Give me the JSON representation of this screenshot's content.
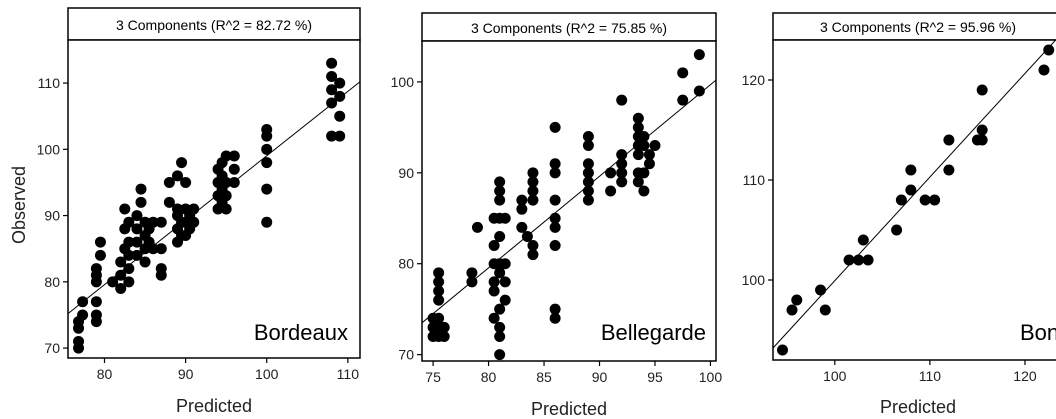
{
  "figure": {
    "y_axis_label": "Observed"
  },
  "chart_data": [
    {
      "type": "scatter",
      "title": "3 Components (R^2 = 82.72 %)",
      "xlabel": "Predicted",
      "ylabel": "Observed",
      "annotation": "Bordeaux",
      "xlim": [
        75.5,
        111.5
      ],
      "ylim": [
        68.5,
        116.5
      ],
      "xticks": [
        80,
        90,
        100,
        110
      ],
      "yticks": [
        70,
        80,
        90,
        100,
        110
      ],
      "fit_line": {
        "x": [
          75.5,
          111.5
        ],
        "y": [
          75.2,
          110.2
        ]
      },
      "points": [
        {
          "x": 76.8,
          "y": 70
        },
        {
          "x": 76.8,
          "y": 71
        },
        {
          "x": 76.8,
          "y": 73
        },
        {
          "x": 76.8,
          "y": 74
        },
        {
          "x": 77.3,
          "y": 75
        },
        {
          "x": 77.3,
          "y": 77
        },
        {
          "x": 79,
          "y": 74
        },
        {
          "x": 79,
          "y": 75
        },
        {
          "x": 79,
          "y": 77
        },
        {
          "x": 79,
          "y": 80
        },
        {
          "x": 79,
          "y": 81
        },
        {
          "x": 79,
          "y": 82
        },
        {
          "x": 79.5,
          "y": 84
        },
        {
          "x": 79.5,
          "y": 86
        },
        {
          "x": 81,
          "y": 80
        },
        {
          "x": 82,
          "y": 79
        },
        {
          "x": 82,
          "y": 81
        },
        {
          "x": 82,
          "y": 83
        },
        {
          "x": 82.5,
          "y": 85
        },
        {
          "x": 82.5,
          "y": 88
        },
        {
          "x": 82.5,
          "y": 91
        },
        {
          "x": 83,
          "y": 80
        },
        {
          "x": 83,
          "y": 82
        },
        {
          "x": 83,
          "y": 84
        },
        {
          "x": 83,
          "y": 86
        },
        {
          "x": 83,
          "y": 89
        },
        {
          "x": 84,
          "y": 84
        },
        {
          "x": 84,
          "y": 86
        },
        {
          "x": 84,
          "y": 88
        },
        {
          "x": 84,
          "y": 90
        },
        {
          "x": 84.5,
          "y": 92
        },
        {
          "x": 84.5,
          "y": 94
        },
        {
          "x": 85,
          "y": 83
        },
        {
          "x": 85,
          "y": 85
        },
        {
          "x": 85,
          "y": 87
        },
        {
          "x": 85,
          "y": 89
        },
        {
          "x": 85.5,
          "y": 86
        },
        {
          "x": 85.5,
          "y": 88
        },
        {
          "x": 86,
          "y": 85
        },
        {
          "x": 86,
          "y": 89
        },
        {
          "x": 87,
          "y": 81
        },
        {
          "x": 87,
          "y": 82
        },
        {
          "x": 87,
          "y": 85
        },
        {
          "x": 87,
          "y": 89
        },
        {
          "x": 88,
          "y": 92
        },
        {
          "x": 88,
          "y": 95
        },
        {
          "x": 89,
          "y": 86
        },
        {
          "x": 89,
          "y": 88
        },
        {
          "x": 89,
          "y": 90
        },
        {
          "x": 89,
          "y": 91
        },
        {
          "x": 89,
          "y": 96
        },
        {
          "x": 89.5,
          "y": 87
        },
        {
          "x": 89.5,
          "y": 89
        },
        {
          "x": 89.5,
          "y": 98
        },
        {
          "x": 90,
          "y": 87
        },
        {
          "x": 90,
          "y": 89
        },
        {
          "x": 90,
          "y": 91
        },
        {
          "x": 90,
          "y": 95
        },
        {
          "x": 90.5,
          "y": 88
        },
        {
          "x": 90.5,
          "y": 90
        },
        {
          "x": 91,
          "y": 89
        },
        {
          "x": 91,
          "y": 91
        },
        {
          "x": 94,
          "y": 91
        },
        {
          "x": 94,
          "y": 93
        },
        {
          "x": 94,
          "y": 95
        },
        {
          "x": 94,
          "y": 97
        },
        {
          "x": 94.5,
          "y": 92
        },
        {
          "x": 94.5,
          "y": 94
        },
        {
          "x": 94.5,
          "y": 96
        },
        {
          "x": 94.5,
          "y": 98
        },
        {
          "x": 95,
          "y": 91
        },
        {
          "x": 95,
          "y": 93
        },
        {
          "x": 95,
          "y": 95
        },
        {
          "x": 95,
          "y": 99
        },
        {
          "x": 96,
          "y": 95
        },
        {
          "x": 96,
          "y": 97
        },
        {
          "x": 96,
          "y": 99
        },
        {
          "x": 100,
          "y": 89
        },
        {
          "x": 100,
          "y": 94
        },
        {
          "x": 100,
          "y": 98
        },
        {
          "x": 100,
          "y": 100
        },
        {
          "x": 100,
          "y": 102
        },
        {
          "x": 100,
          "y": 103
        },
        {
          "x": 108,
          "y": 102
        },
        {
          "x": 108,
          "y": 107
        },
        {
          "x": 108,
          "y": 109
        },
        {
          "x": 108,
          "y": 111
        },
        {
          "x": 108,
          "y": 113
        },
        {
          "x": 109,
          "y": 105
        },
        {
          "x": 109,
          "y": 108
        },
        {
          "x": 109,
          "y": 110
        },
        {
          "x": 109,
          "y": 102
        }
      ]
    },
    {
      "type": "scatter",
      "title": "3 Components (R^2 = 75.85 %)",
      "xlabel": "Predicted",
      "ylabel": "",
      "annotation": "Bellegarde",
      "xlim": [
        74,
        100.5
      ],
      "ylim": [
        69.3,
        104.5
      ],
      "xticks": [
        75,
        80,
        85,
        90,
        95,
        100
      ],
      "yticks": [
        70,
        80,
        90,
        100
      ],
      "fit_line": {
        "x": [
          74,
          100.5
        ],
        "y": [
          73.5,
          100.2
        ]
      },
      "points": [
        {
          "x": 75,
          "y": 72
        },
        {
          "x": 75,
          "y": 73
        },
        {
          "x": 75,
          "y": 74
        },
        {
          "x": 75.5,
          "y": 72
        },
        {
          "x": 75.5,
          "y": 73
        },
        {
          "x": 75.5,
          "y": 74
        },
        {
          "x": 75.5,
          "y": 76
        },
        {
          "x": 75.5,
          "y": 77
        },
        {
          "x": 75.5,
          "y": 78
        },
        {
          "x": 75.5,
          "y": 79
        },
        {
          "x": 76,
          "y": 72
        },
        {
          "x": 76,
          "y": 73
        },
        {
          "x": 78.5,
          "y": 78
        },
        {
          "x": 78.5,
          "y": 79
        },
        {
          "x": 79,
          "y": 84
        },
        {
          "x": 80.5,
          "y": 80
        },
        {
          "x": 80.5,
          "y": 82
        },
        {
          "x": 80.5,
          "y": 85
        },
        {
          "x": 80.5,
          "y": 78
        },
        {
          "x": 80.5,
          "y": 77
        },
        {
          "x": 80.5,
          "y": 74
        },
        {
          "x": 81,
          "y": 70
        },
        {
          "x": 81,
          "y": 72
        },
        {
          "x": 81,
          "y": 73
        },
        {
          "x": 81,
          "y": 75
        },
        {
          "x": 81,
          "y": 79
        },
        {
          "x": 81,
          "y": 80
        },
        {
          "x": 81,
          "y": 83
        },
        {
          "x": 81,
          "y": 85
        },
        {
          "x": 81,
          "y": 87
        },
        {
          "x": 81,
          "y": 88
        },
        {
          "x": 81,
          "y": 89
        },
        {
          "x": 81.5,
          "y": 76
        },
        {
          "x": 81.5,
          "y": 78
        },
        {
          "x": 81.5,
          "y": 80
        },
        {
          "x": 81.5,
          "y": 85
        },
        {
          "x": 83,
          "y": 84
        },
        {
          "x": 83,
          "y": 86
        },
        {
          "x": 83,
          "y": 87
        },
        {
          "x": 83.5,
          "y": 83
        },
        {
          "x": 84,
          "y": 81
        },
        {
          "x": 84,
          "y": 82
        },
        {
          "x": 84,
          "y": 87
        },
        {
          "x": 84,
          "y": 88
        },
        {
          "x": 84,
          "y": 89
        },
        {
          "x": 84,
          "y": 90
        },
        {
          "x": 86,
          "y": 74
        },
        {
          "x": 86,
          "y": 75
        },
        {
          "x": 86,
          "y": 82
        },
        {
          "x": 86,
          "y": 84
        },
        {
          "x": 86,
          "y": 85
        },
        {
          "x": 86,
          "y": 87
        },
        {
          "x": 86,
          "y": 90
        },
        {
          "x": 86,
          "y": 91
        },
        {
          "x": 86,
          "y": 95
        },
        {
          "x": 89,
          "y": 87
        },
        {
          "x": 89,
          "y": 88
        },
        {
          "x": 89,
          "y": 89
        },
        {
          "x": 89,
          "y": 90
        },
        {
          "x": 89,
          "y": 91
        },
        {
          "x": 89,
          "y": 93
        },
        {
          "x": 89,
          "y": 94
        },
        {
          "x": 91,
          "y": 88
        },
        {
          "x": 91,
          "y": 90
        },
        {
          "x": 92,
          "y": 89
        },
        {
          "x": 92,
          "y": 90
        },
        {
          "x": 92,
          "y": 91
        },
        {
          "x": 92,
          "y": 92
        },
        {
          "x": 92,
          "y": 98
        },
        {
          "x": 93.5,
          "y": 89
        },
        {
          "x": 93.5,
          "y": 90
        },
        {
          "x": 93.5,
          "y": 92
        },
        {
          "x": 93.5,
          "y": 93
        },
        {
          "x": 93.5,
          "y": 94
        },
        {
          "x": 93.5,
          "y": 95
        },
        {
          "x": 93.5,
          "y": 96
        },
        {
          "x": 94,
          "y": 88
        },
        {
          "x": 94,
          "y": 90
        },
        {
          "x": 94,
          "y": 93
        },
        {
          "x": 94,
          "y": 94
        },
        {
          "x": 94.5,
          "y": 91
        },
        {
          "x": 94.5,
          "y": 92
        },
        {
          "x": 95,
          "y": 93
        },
        {
          "x": 97.5,
          "y": 98
        },
        {
          "x": 97.5,
          "y": 101
        },
        {
          "x": 99,
          "y": 99
        },
        {
          "x": 99,
          "y": 103
        }
      ]
    },
    {
      "type": "scatter",
      "title": "3 Components (R^2 = 95.96 %)",
      "xlabel": "Predicted",
      "ylabel": "",
      "annotation": "Bonn",
      "xlim": [
        93.5,
        124
      ],
      "ylim": [
        92,
        124
      ],
      "xticks": [
        100,
        110,
        120
      ],
      "yticks": [
        100,
        110,
        120
      ],
      "fit_line": {
        "x": [
          93.5,
          124
        ],
        "y": [
          93.2,
          124.8
        ]
      },
      "points": [
        {
          "x": 94.5,
          "y": 93
        },
        {
          "x": 95.5,
          "y": 97
        },
        {
          "x": 96,
          "y": 98
        },
        {
          "x": 98.5,
          "y": 99
        },
        {
          "x": 99,
          "y": 97
        },
        {
          "x": 101.5,
          "y": 102
        },
        {
          "x": 102.5,
          "y": 102
        },
        {
          "x": 103,
          "y": 104
        },
        {
          "x": 103.5,
          "y": 102
        },
        {
          "x": 106.5,
          "y": 105
        },
        {
          "x": 107,
          "y": 108
        },
        {
          "x": 108,
          "y": 109
        },
        {
          "x": 108,
          "y": 111
        },
        {
          "x": 109.5,
          "y": 108
        },
        {
          "x": 110.5,
          "y": 108
        },
        {
          "x": 112,
          "y": 111
        },
        {
          "x": 112,
          "y": 114
        },
        {
          "x": 115,
          "y": 114
        },
        {
          "x": 115.5,
          "y": 114
        },
        {
          "x": 115.5,
          "y": 115
        },
        {
          "x": 115.5,
          "y": 119
        },
        {
          "x": 122,
          "y": 121
        },
        {
          "x": 122.5,
          "y": 123
        }
      ]
    }
  ]
}
